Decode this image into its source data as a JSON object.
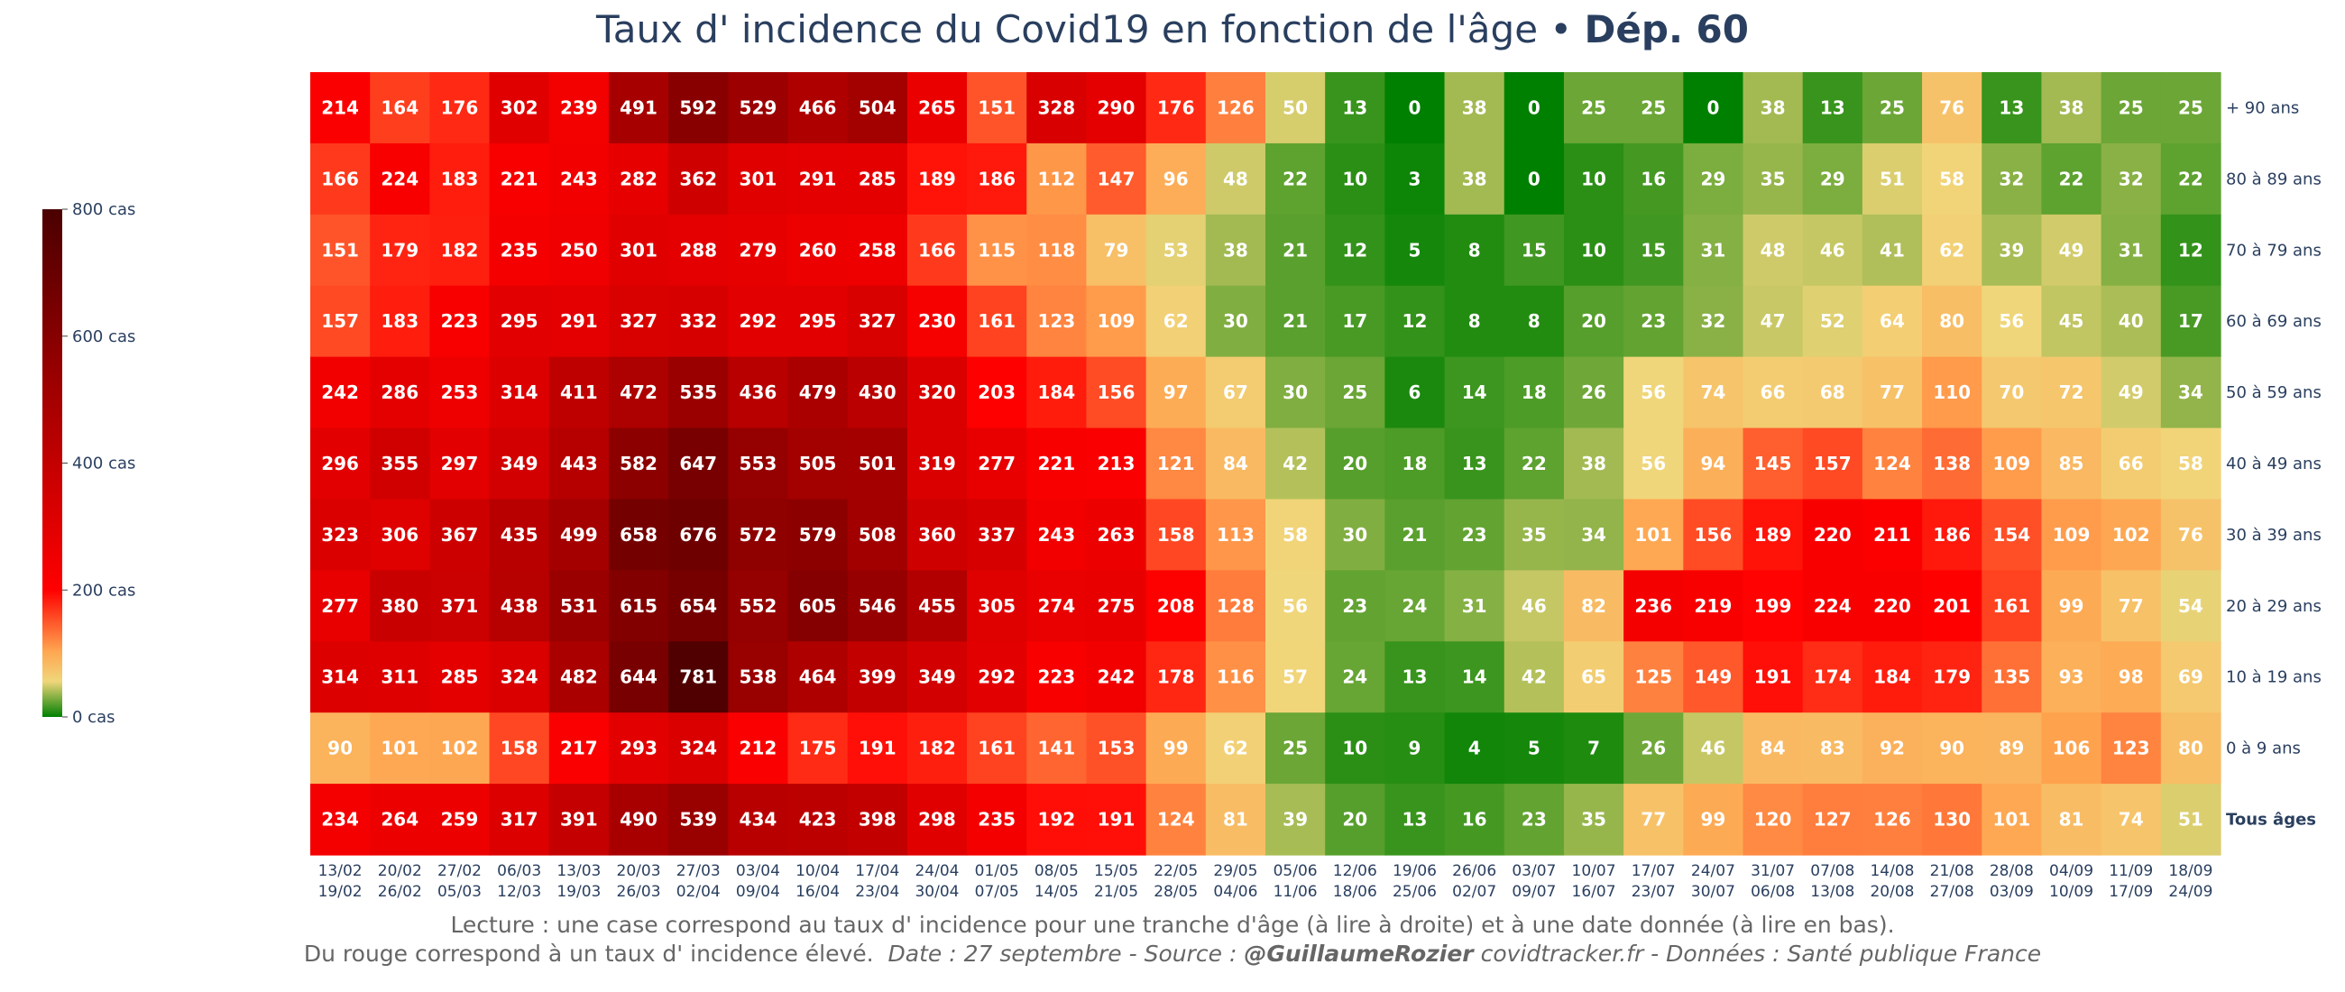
{
  "title": {
    "main": "Taux d' incidence du Covid19 en fonction de l'âge",
    "sep": "•",
    "dept": "Dép. 60"
  },
  "chart_data": {
    "type": "heatmap",
    "rows": [
      "+ 90 ans",
      "80 à 89 ans",
      "70 à 79 ans",
      "60 à 69 ans",
      "50 à 59 ans",
      "40 à 49 ans",
      "30 à 39 ans",
      "20 à 29 ans",
      "10 à 19 ans",
      "0 à 9 ans",
      "Tous âges"
    ],
    "columns": [
      [
        "13/02",
        "19/02"
      ],
      [
        "20/02",
        "26/02"
      ],
      [
        "27/02",
        "05/03"
      ],
      [
        "06/03",
        "12/03"
      ],
      [
        "13/03",
        "19/03"
      ],
      [
        "20/03",
        "26/03"
      ],
      [
        "27/03",
        "02/04"
      ],
      [
        "03/04",
        "09/04"
      ],
      [
        "10/04",
        "16/04"
      ],
      [
        "17/04",
        "23/04"
      ],
      [
        "24/04",
        "30/04"
      ],
      [
        "01/05",
        "07/05"
      ],
      [
        "08/05",
        "14/05"
      ],
      [
        "15/05",
        "21/05"
      ],
      [
        "22/05",
        "28/05"
      ],
      [
        "29/05",
        "04/06"
      ],
      [
        "05/06",
        "11/06"
      ],
      [
        "12/06",
        "18/06"
      ],
      [
        "19/06",
        "25/06"
      ],
      [
        "26/06",
        "02/07"
      ],
      [
        "03/07",
        "09/07"
      ],
      [
        "10/07",
        "16/07"
      ],
      [
        "17/07",
        "23/07"
      ],
      [
        "24/07",
        "30/07"
      ],
      [
        "31/07",
        "06/08"
      ],
      [
        "07/08",
        "13/08"
      ],
      [
        "14/08",
        "20/08"
      ],
      [
        "21/08",
        "27/08"
      ],
      [
        "28/08",
        "03/09"
      ],
      [
        "04/09",
        "10/09"
      ],
      [
        "11/09",
        "17/09"
      ],
      [
        "18/09",
        "24/09"
      ]
    ],
    "values": [
      [
        214,
        164,
        176,
        302,
        239,
        491,
        592,
        529,
        466,
        504,
        265,
        151,
        328,
        290,
        176,
        126,
        50,
        13,
        0,
        38,
        0,
        25,
        25,
        0,
        38,
        13,
        25,
        76,
        13,
        38,
        25,
        25
      ],
      [
        166,
        224,
        183,
        221,
        243,
        282,
        362,
        301,
        291,
        285,
        189,
        186,
        112,
        147,
        96,
        48,
        22,
        10,
        3,
        38,
        0,
        10,
        16,
        29,
        35,
        29,
        51,
        58,
        32,
        22,
        32,
        22
      ],
      [
        151,
        179,
        182,
        235,
        250,
        301,
        288,
        279,
        260,
        258,
        166,
        115,
        118,
        79,
        53,
        38,
        21,
        12,
        5,
        8,
        15,
        10,
        15,
        31,
        48,
        46,
        41,
        62,
        39,
        49,
        31,
        12
      ],
      [
        157,
        183,
        223,
        295,
        291,
        327,
        332,
        292,
        295,
        327,
        230,
        161,
        123,
        109,
        62,
        30,
        21,
        17,
        12,
        8,
        8,
        20,
        23,
        32,
        47,
        52,
        64,
        80,
        56,
        45,
        40,
        17
      ],
      [
        242,
        286,
        253,
        314,
        411,
        472,
        535,
        436,
        479,
        430,
        320,
        203,
        184,
        156,
        97,
        67,
        30,
        25,
        6,
        14,
        18,
        26,
        56,
        74,
        66,
        68,
        77,
        110,
        70,
        72,
        49,
        34
      ],
      [
        296,
        355,
        297,
        349,
        443,
        582,
        647,
        553,
        505,
        501,
        319,
        277,
        221,
        213,
        121,
        84,
        42,
        20,
        18,
        13,
        22,
        38,
        56,
        94,
        145,
        157,
        124,
        138,
        109,
        85,
        66,
        58
      ],
      [
        323,
        306,
        367,
        435,
        499,
        658,
        676,
        572,
        579,
        508,
        360,
        337,
        243,
        263,
        158,
        113,
        58,
        30,
        21,
        23,
        35,
        34,
        101,
        156,
        189,
        220,
        211,
        186,
        154,
        109,
        102,
        76
      ],
      [
        277,
        380,
        371,
        438,
        531,
        615,
        654,
        552,
        605,
        546,
        455,
        305,
        274,
        275,
        208,
        128,
        56,
        23,
        24,
        31,
        46,
        82,
        236,
        219,
        199,
        224,
        220,
        201,
        161,
        99,
        77,
        54
      ],
      [
        314,
        311,
        285,
        324,
        482,
        644,
        781,
        538,
        464,
        399,
        349,
        292,
        223,
        242,
        178,
        116,
        57,
        24,
        13,
        14,
        42,
        65,
        125,
        149,
        191,
        174,
        184,
        179,
        135,
        93,
        98,
        69
      ],
      [
        90,
        101,
        102,
        158,
        217,
        293,
        324,
        212,
        175,
        191,
        182,
        161,
        141,
        153,
        99,
        62,
        25,
        10,
        9,
        4,
        5,
        7,
        26,
        46,
        84,
        83,
        92,
        90,
        89,
        106,
        123,
        80
      ],
      [
        234,
        264,
        259,
        317,
        391,
        490,
        539,
        434,
        423,
        398,
        298,
        235,
        192,
        191,
        124,
        81,
        39,
        20,
        13,
        16,
        23,
        35,
        77,
        99,
        120,
        127,
        126,
        130,
        101,
        81,
        74,
        51
      ]
    ],
    "zmin": 0,
    "zmax": 800,
    "colorbar": {
      "ticks": [
        0,
        200,
        400,
        600,
        800
      ],
      "labels": [
        "0 cas",
        "200 cas",
        "400 cas",
        "600 cas",
        "800 cas"
      ]
    },
    "colors": {
      "green": "#008000",
      "yellow": "#f0d67a",
      "orange": "#ffa550",
      "red": "#ff0000",
      "darkred": "#4a0000"
    }
  },
  "caption": {
    "line1": "Lecture : une case correspond au taux d' incidence pour une tranche d'âge (à lire à droite) et à une date donnée (à lire en bas).",
    "line2a": "Du rouge correspond à un taux d' incidence élevé.",
    "line2b": "Date : 27 septembre - Source : ",
    "author": "@GuillaumeRozier",
    "line2c": " covidtracker.fr - Données : Santé publique France"
  }
}
